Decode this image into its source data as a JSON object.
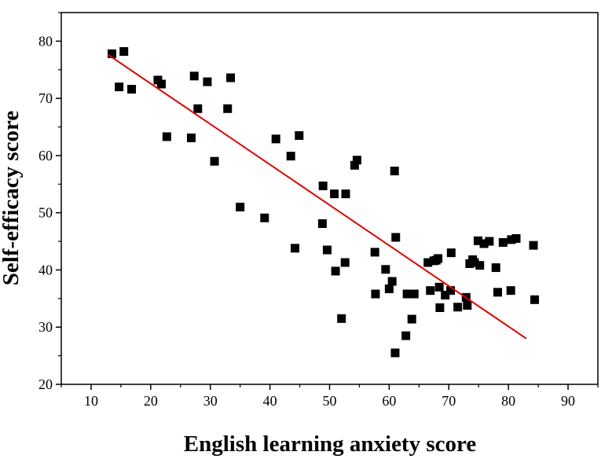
{
  "chart_data": {
    "type": "scatter",
    "xlabel": "English learning anxiety score",
    "ylabel": "Self-efficacy score",
    "xlim": [
      5,
      95
    ],
    "ylim": [
      20,
      85
    ],
    "xticks": [
      10,
      20,
      30,
      40,
      50,
      60,
      70,
      80,
      90
    ],
    "yticks": [
      20,
      30,
      40,
      50,
      60,
      70,
      80
    ],
    "grid": false,
    "colors": {
      "points": "#000000",
      "fit_line": "#e00000",
      "axes": "#000000"
    },
    "points": [
      [
        13.5,
        77.8
      ],
      [
        15.5,
        78.2
      ],
      [
        14.7,
        72.0
      ],
      [
        16.8,
        71.6
      ],
      [
        21.2,
        73.2
      ],
      [
        21.8,
        72.5
      ],
      [
        22.7,
        63.3
      ],
      [
        26.8,
        63.1
      ],
      [
        27.3,
        73.9
      ],
      [
        27.9,
        68.2
      ],
      [
        29.5,
        72.9
      ],
      [
        30.7,
        59.0
      ],
      [
        32.9,
        68.2
      ],
      [
        33.4,
        73.6
      ],
      [
        35.0,
        51.0
      ],
      [
        39.1,
        49.1
      ],
      [
        41.0,
        62.9
      ],
      [
        43.5,
        59.9
      ],
      [
        44.2,
        43.8
      ],
      [
        44.9,
        63.5
      ],
      [
        48.9,
        54.7
      ],
      [
        48.8,
        48.1
      ],
      [
        49.6,
        43.5
      ],
      [
        50.8,
        53.3
      ],
      [
        51.0,
        39.8
      ],
      [
        52.0,
        31.5
      ],
      [
        52.7,
        53.3
      ],
      [
        52.6,
        41.3
      ],
      [
        54.2,
        58.3
      ],
      [
        54.6,
        59.2
      ],
      [
        57.6,
        43.1
      ],
      [
        57.7,
        35.8
      ],
      [
        59.4,
        40.1
      ],
      [
        60.0,
        36.7
      ],
      [
        60.5,
        38.0
      ],
      [
        60.9,
        57.3
      ],
      [
        61.1,
        45.7
      ],
      [
        61.0,
        25.5
      ],
      [
        62.8,
        28.5
      ],
      [
        63.0,
        35.8
      ],
      [
        63.8,
        31.4
      ],
      [
        64.2,
        35.8
      ],
      [
        66.5,
        41.3
      ],
      [
        66.9,
        36.4
      ],
      [
        67.5,
        41.6
      ],
      [
        67.9,
        41.7
      ],
      [
        68.2,
        42.0
      ],
      [
        68.5,
        33.4
      ],
      [
        68.4,
        37.0
      ],
      [
        69.4,
        35.6
      ],
      [
        70.3,
        36.4
      ],
      [
        70.4,
        43.0
      ],
      [
        71.5,
        33.5
      ],
      [
        72.9,
        35.2
      ],
      [
        73.1,
        33.8
      ],
      [
        73.5,
        41.1
      ],
      [
        74.0,
        41.8
      ],
      [
        74.3,
        41.3
      ],
      [
        74.9,
        45.1
      ],
      [
        75.2,
        40.8
      ],
      [
        75.9,
        44.6
      ],
      [
        76.8,
        45.0
      ],
      [
        77.9,
        40.4
      ],
      [
        78.2,
        36.1
      ],
      [
        79.1,
        44.8
      ],
      [
        80.4,
        36.4
      ],
      [
        80.5,
        45.3
      ],
      [
        81.3,
        45.5
      ],
      [
        84.2,
        44.3
      ],
      [
        84.4,
        34.8
      ]
    ],
    "fit_line": {
      "x": [
        12.9,
        83.0
      ],
      "y": [
        77.6,
        28.0
      ]
    }
  }
}
